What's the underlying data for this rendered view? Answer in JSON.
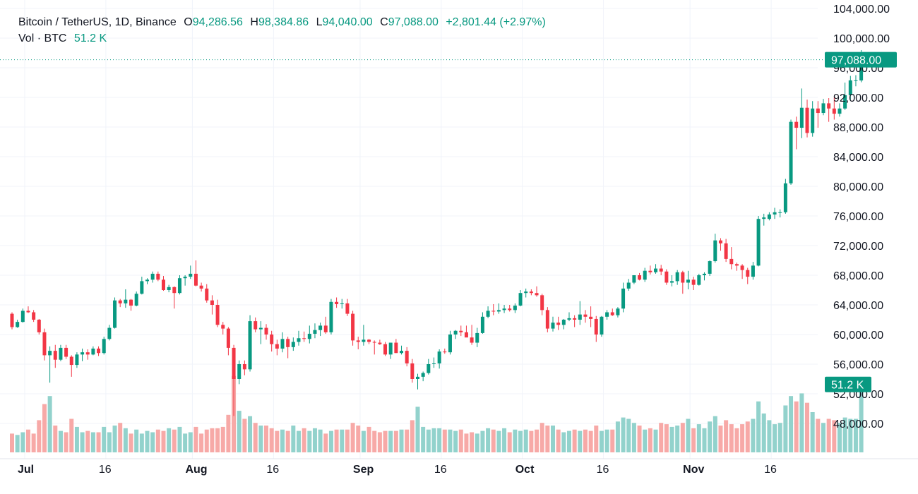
{
  "header": {
    "symbol": "Bitcoin / TetherUS, 1D, Binance",
    "o_label": "O",
    "o_value": "94,286.56",
    "h_label": "H",
    "h_value": "98,384.86",
    "l_label": "L",
    "l_value": "94,040.00",
    "c_label": "C",
    "c_value": "97,088.00",
    "change": "+2,801.44 (+2.97%)",
    "vol_label": "Vol · BTC",
    "vol_value": "51.2 K"
  },
  "colors": {
    "up": "#089981",
    "down": "#f23645",
    "up_vol": "#92d2cc",
    "down_vol": "#f7a9a7",
    "grid": "#f0f3fa",
    "price_line": "#089981"
  },
  "price_badge": "97,088.00",
  "volume_badge": "51.2 K",
  "chart_data": {
    "type": "candlestick",
    "title": "Bitcoin / TetherUS, 1D, Binance",
    "y_axis_ticks": [
      "104,000.00",
      "100,000.00",
      "96,000.00",
      "92,000.00",
      "88,000.00",
      "84,000.00",
      "80,000.00",
      "76,000.00",
      "72,000.00",
      "68,000.00",
      "64,000.00",
      "60,000.00",
      "56,000.00",
      "52,000.00",
      "48,000.00"
    ],
    "ylim": [
      45000,
      104500
    ],
    "x_axis_ticks": [
      {
        "label": "Jul",
        "index": 0,
        "bold": true
      },
      {
        "label": "16",
        "index": 15,
        "bold": false
      },
      {
        "label": "Aug",
        "index": 31,
        "bold": true
      },
      {
        "label": "16",
        "index": 46,
        "bold": false
      },
      {
        "label": "Sep",
        "index": 62,
        "bold": true
      },
      {
        "label": "16",
        "index": 77,
        "bold": false
      },
      {
        "label": "Oct",
        "index": 92,
        "bold": true
      },
      {
        "label": "16",
        "index": 107,
        "bold": false
      },
      {
        "label": "Nov",
        "index": 123,
        "bold": true
      },
      {
        "label": "16",
        "index": 138,
        "bold": false
      }
    ],
    "last_price": 97088.0,
    "last_volume_k": 51.2,
    "candles_ohlcv": [
      [
        62800,
        63000,
        60700,
        61000,
        14
      ],
      [
        61000,
        62000,
        60900,
        61700,
        13
      ],
      [
        61700,
        63500,
        61600,
        63200,
        15
      ],
      [
        63200,
        63800,
        62900,
        63000,
        17
      ],
      [
        63000,
        63300,
        61700,
        62000,
        14
      ],
      [
        62000,
        62100,
        60000,
        60300,
        24
      ],
      [
        60300,
        60800,
        56500,
        57200,
        36
      ],
      [
        57200,
        58400,
        53500,
        57800,
        42
      ],
      [
        57800,
        58600,
        55500,
        56600,
        20
      ],
      [
        56600,
        58600,
        56400,
        58200,
        16
      ],
      [
        58200,
        58600,
        56700,
        57000,
        15
      ],
      [
        57000,
        57200,
        54300,
        55900,
        25
      ],
      [
        55900,
        57600,
        55500,
        57300,
        19
      ],
      [
        57300,
        58100,
        56400,
        57600,
        15
      ],
      [
        57600,
        58000,
        56600,
        57300,
        16
      ],
      [
        57300,
        58400,
        57200,
        58100,
        15
      ],
      [
        58100,
        58400,
        57100,
        57500,
        15
      ],
      [
        57500,
        59700,
        57300,
        59400,
        19
      ],
      [
        59400,
        61300,
        59200,
        60900,
        15
      ],
      [
        60900,
        65000,
        60800,
        64600,
        20
      ],
      [
        64600,
        64800,
        63700,
        64200,
        22
      ],
      [
        64200,
        66100,
        63600,
        64700,
        18
      ],
      [
        64700,
        64800,
        63200,
        63900,
        14
      ],
      [
        63900,
        65800,
        63800,
        65500,
        17
      ],
      [
        65500,
        67800,
        65400,
        67200,
        14
      ],
      [
        67200,
        67600,
        66800,
        67400,
        16
      ],
      [
        67400,
        68500,
        67000,
        68200,
        15
      ],
      [
        68200,
        68500,
        67200,
        67400,
        17
      ],
      [
        67400,
        67900,
        65900,
        66000,
        16
      ],
      [
        66000,
        66700,
        65700,
        66400,
        18
      ],
      [
        66400,
        66500,
        63500,
        65600,
        17
      ],
      [
        65600,
        68000,
        65400,
        67600,
        19
      ],
      [
        67600,
        68000,
        66600,
        67800,
        14
      ],
      [
        67800,
        69300,
        67500,
        68200,
        15
      ],
      [
        68200,
        70000,
        66500,
        66600,
        19
      ],
      [
        66600,
        67000,
        65800,
        66200,
        14
      ],
      [
        66200,
        66800,
        64300,
        64600,
        17
      ],
      [
        64600,
        65300,
        62700,
        64000,
        18
      ],
      [
        64000,
        64700,
        61000,
        61300,
        18
      ],
      [
        61300,
        61700,
        60000,
        60800,
        19
      ],
      [
        60800,
        61000,
        57200,
        58200,
        28
      ],
      [
        58200,
        58600,
        49000,
        54000,
        57
      ],
      [
        54000,
        56500,
        53300,
        56000,
        31
      ],
      [
        56000,
        56500,
        54500,
        55300,
        25
      ],
      [
        55300,
        62600,
        55000,
        61800,
        27
      ],
      [
        61800,
        62300,
        60300,
        60700,
        22
      ],
      [
        60700,
        61800,
        58700,
        60900,
        20
      ],
      [
        60900,
        61400,
        59300,
        60000,
        20
      ],
      [
        60000,
        60500,
        57700,
        58700,
        18
      ],
      [
        58700,
        59300,
        57200,
        58100,
        16
      ],
      [
        58100,
        60300,
        57600,
        59400,
        17
      ],
      [
        59400,
        59700,
        56800,
        58300,
        16
      ],
      [
        58300,
        59600,
        57800,
        59000,
        20
      ],
      [
        59000,
        60500,
        58500,
        59500,
        16
      ],
      [
        59500,
        60400,
        59000,
        59400,
        18
      ],
      [
        59400,
        61200,
        58800,
        60100,
        16
      ],
      [
        60100,
        61500,
        59500,
        60600,
        18
      ],
      [
        60600,
        61600,
        59800,
        61200,
        17
      ],
      [
        61200,
        62400,
        60100,
        60300,
        14
      ],
      [
        60300,
        64800,
        60000,
        64400,
        16
      ],
      [
        64400,
        65000,
        63600,
        64100,
        17
      ],
      [
        64100,
        64800,
        63500,
        64200,
        17
      ],
      [
        64200,
        64800,
        62500,
        62800,
        17
      ],
      [
        62800,
        63200,
        58500,
        59200,
        22
      ],
      [
        59200,
        59700,
        58000,
        59000,
        20
      ],
      [
        59000,
        61300,
        58500,
        59300,
        16
      ],
      [
        59300,
        59400,
        58700,
        59000,
        19
      ],
      [
        59000,
        59200,
        57300,
        58900,
        16
      ],
      [
        58900,
        59300,
        58600,
        58700,
        15
      ],
      [
        58700,
        59000,
        57100,
        57300,
        16
      ],
      [
        57300,
        58900,
        56700,
        58900,
        16
      ],
      [
        58900,
        59400,
        57500,
        57500,
        16
      ],
      [
        57500,
        58500,
        57300,
        57800,
        17
      ],
      [
        57800,
        58300,
        55700,
        56100,
        17
      ],
      [
        56100,
        56700,
        53500,
        54000,
        24
      ],
      [
        54000,
        54700,
        52600,
        54300,
        34
      ],
      [
        54300,
        55000,
        53700,
        54800,
        19
      ],
      [
        54800,
        56700,
        54600,
        56000,
        17
      ],
      [
        56000,
        56900,
        55500,
        56100,
        18
      ],
      [
        56100,
        58000,
        55400,
        57700,
        18
      ],
      [
        57700,
        58100,
        57400,
        57600,
        17
      ],
      [
        57600,
        60500,
        57300,
        60000,
        17
      ],
      [
        60000,
        60600,
        59400,
        60500,
        16
      ],
      [
        60500,
        61200,
        59800,
        60300,
        17
      ],
      [
        60300,
        61200,
        59700,
        59600,
        14
      ],
      [
        59600,
        61300,
        58600,
        58900,
        15
      ],
      [
        58900,
        60900,
        58300,
        60200,
        14
      ],
      [
        60200,
        63000,
        60100,
        62400,
        16
      ],
      [
        62400,
        63800,
        62200,
        63200,
        18
      ],
      [
        63200,
        64100,
        62600,
        63100,
        17
      ],
      [
        63100,
        64200,
        62800,
        63300,
        16
      ],
      [
        63300,
        64000,
        62900,
        63500,
        18
      ],
      [
        63500,
        64000,
        63100,
        63300,
        15
      ],
      [
        63300,
        64200,
        62900,
        63900,
        17
      ],
      [
        63900,
        66000,
        63800,
        65600,
        16
      ],
      [
        65600,
        66200,
        65000,
        65800,
        17
      ],
      [
        65800,
        66100,
        65300,
        65600,
        16
      ],
      [
        65600,
        66500,
        65100,
        65300,
        17
      ],
      [
        65300,
        65500,
        62600,
        63300,
        22
      ],
      [
        63300,
        63700,
        60300,
        60800,
        20
      ],
      [
        60800,
        62400,
        60400,
        61600,
        20
      ],
      [
        61600,
        62400,
        60600,
        61300,
        17
      ],
      [
        61300,
        62100,
        60700,
        62000,
        15
      ],
      [
        62000,
        63000,
        61800,
        62200,
        16
      ],
      [
        62200,
        62600,
        61000,
        62000,
        17
      ],
      [
        62000,
        64500,
        61300,
        62700,
        16
      ],
      [
        62700,
        63300,
        61600,
        62400,
        17
      ],
      [
        62400,
        63800,
        61000,
        62100,
        16
      ],
      [
        62100,
        62500,
        59000,
        60000,
        20
      ],
      [
        60000,
        62500,
        59700,
        62400,
        16
      ],
      [
        62400,
        63300,
        62000,
        63000,
        17
      ],
      [
        63000,
        63500,
        62500,
        62600,
        17
      ],
      [
        62600,
        63700,
        62300,
        63500,
        23
      ],
      [
        63500,
        67000,
        63000,
        66200,
        26
      ],
      [
        66200,
        67500,
        65900,
        67000,
        25
      ],
      [
        67000,
        68000,
        66800,
        68000,
        22
      ],
      [
        68000,
        68300,
        67300,
        67400,
        20
      ],
      [
        67400,
        69000,
        67100,
        68600,
        17
      ],
      [
        68600,
        69300,
        68100,
        68400,
        18
      ],
      [
        68400,
        69500,
        68200,
        68900,
        17
      ],
      [
        68900,
        69400,
        68000,
        68500,
        22
      ],
      [
        68500,
        68800,
        66700,
        67000,
        21
      ],
      [
        67000,
        68000,
        66500,
        67200,
        19
      ],
      [
        67200,
        68700,
        66700,
        68400,
        20
      ],
      [
        68400,
        68600,
        65500,
        67000,
        22
      ],
      [
        67000,
        68600,
        66100,
        67400,
        25
      ],
      [
        67400,
        67800,
        66000,
        66700,
        18
      ],
      [
        66700,
        68200,
        66600,
        68000,
        21
      ],
      [
        68000,
        68400,
        67300,
        68200,
        18
      ],
      [
        68200,
        70000,
        67900,
        69900,
        23
      ],
      [
        69900,
        73600,
        69700,
        72700,
        27
      ],
      [
        72700,
        73000,
        71300,
        72300,
        20
      ],
      [
        72300,
        72900,
        69800,
        70200,
        24
      ],
      [
        70200,
        71800,
        68800,
        69500,
        21
      ],
      [
        69500,
        69700,
        68600,
        69300,
        18
      ],
      [
        69300,
        69500,
        67500,
        68700,
        21
      ],
      [
        68700,
        69000,
        66800,
        67800,
        23
      ],
      [
        67800,
        69800,
        67400,
        69300,
        25
      ],
      [
        69300,
        76000,
        69200,
        75600,
        38
      ],
      [
        75600,
        76300,
        74700,
        75800,
        29
      ],
      [
        75600,
        76500,
        75400,
        76200,
        24
      ],
      [
        76200,
        77100,
        75600,
        76500,
        21
      ],
      [
        76500,
        76900,
        75800,
        76500,
        22
      ],
      [
        76500,
        81000,
        76300,
        80400,
        35
      ],
      [
        80400,
        89000,
        80200,
        88700,
        42
      ],
      [
        88700,
        89400,
        85000,
        87900,
        38
      ],
      [
        87900,
        93200,
        86500,
        90600,
        44
      ],
      [
        90600,
        91700,
        86600,
        87200,
        37
      ],
      [
        87200,
        91500,
        86700,
        90500,
        30
      ],
      [
        90500,
        91500,
        87900,
        89900,
        25
      ],
      [
        89900,
        91800,
        89600,
        91200,
        22
      ],
      [
        91200,
        91900,
        88700,
        90500,
        25
      ],
      [
        90500,
        92000,
        89000,
        89800,
        24
      ],
      [
        89800,
        91200,
        89400,
        90500,
        22
      ],
      [
        90500,
        94000,
        90300,
        92300,
        26
      ],
      [
        92300,
        94900,
        91700,
        94300,
        25
      ],
      [
        94300,
        95000,
        93500,
        94300,
        25
      ],
      [
        94286,
        98385,
        94040,
        97088,
        51
      ]
    ]
  }
}
